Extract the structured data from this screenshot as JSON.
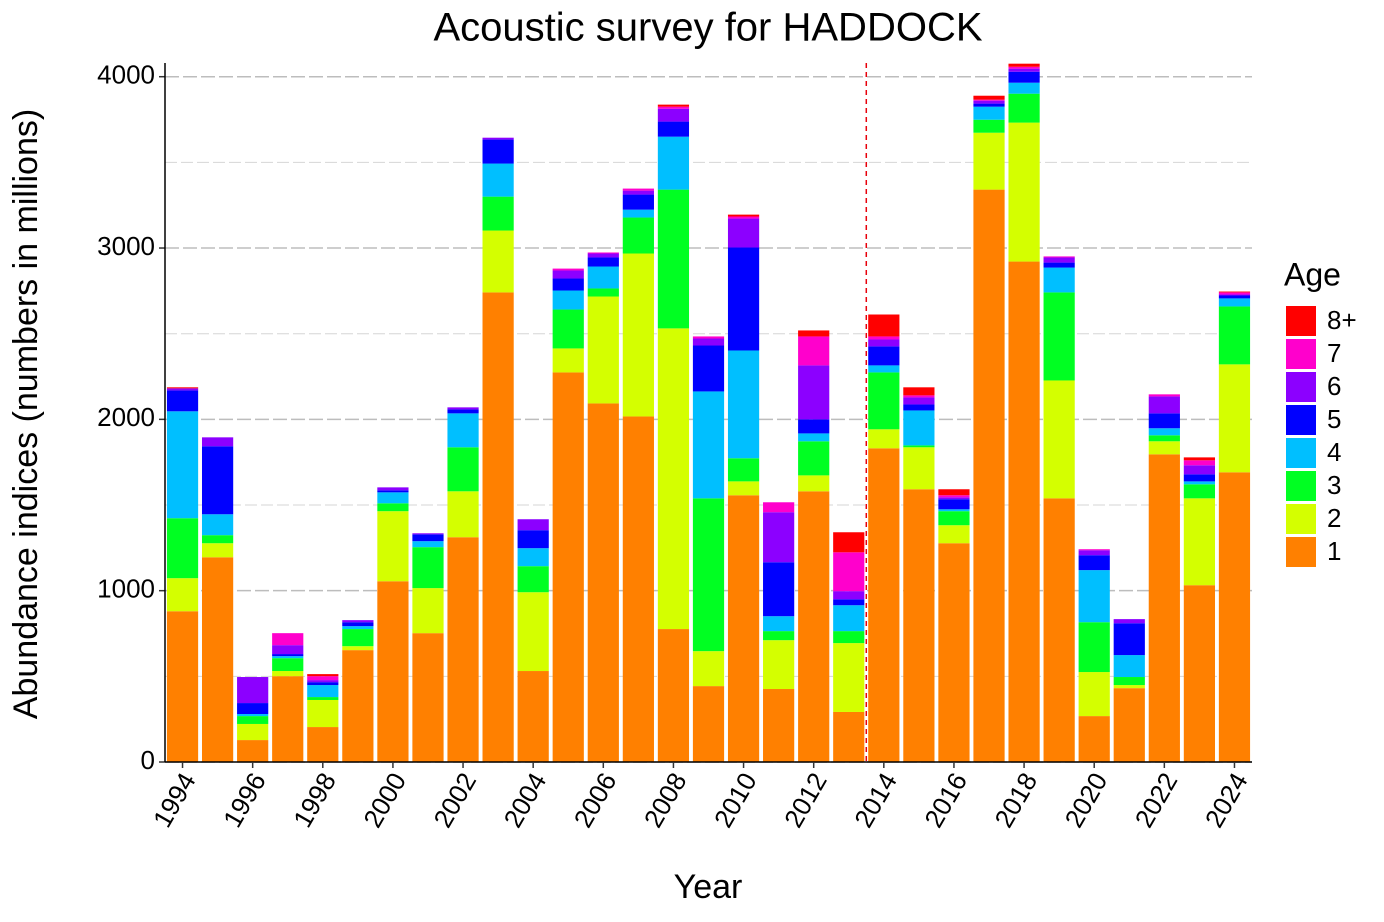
{
  "chart_data": {
    "type": "stacked-bar",
    "title": "Acoustic survey for HADDOCK",
    "x_label": "Year",
    "y_label": "Abundance indices (numbers in millions)",
    "legend_title": "Age",
    "legend_position": "right",
    "x": [
      1994,
      1995,
      1996,
      1997,
      1998,
      1999,
      2000,
      2001,
      2002,
      2003,
      2004,
      2005,
      2006,
      2007,
      2008,
      2009,
      2010,
      2011,
      2012,
      2013,
      2014,
      2015,
      2016,
      2017,
      2018,
      2019,
      2020,
      2021,
      2022,
      2023,
      2024
    ],
    "xlim": [
      1993.5,
      2024.5
    ],
    "xticks": [
      1994,
      1996,
      1998,
      2000,
      2002,
      2004,
      2006,
      2008,
      2010,
      2012,
      2014,
      2016,
      2018,
      2020,
      2022,
      2024
    ],
    "ylim": [
      0,
      4080
    ],
    "yticks": [
      0,
      1000,
      2000,
      3000,
      4000
    ],
    "yminor": [
      500,
      1500,
      2500,
      3500
    ],
    "grid": true,
    "vline": 2013.5,
    "vline_color": "#e8000b",
    "series": [
      {
        "name": "1",
        "color": "#ff8000",
        "values": [
          880,
          1195,
          128,
          501,
          204,
          653,
          1055,
          752,
          1312,
          2741,
          531,
          2274,
          2093,
          2017,
          776,
          443,
          1557,
          426,
          1580,
          292,
          1831,
          1592,
          1277,
          3341,
          2921,
          1539,
          268,
          431,
          1796,
          1032,
          1691
        ]
      },
      {
        "name": "2",
        "color": "#d4ff00",
        "values": [
          193,
          82,
          94,
          30,
          158,
          23,
          409,
          263,
          268,
          361,
          460,
          140,
          624,
          951,
          1755,
          204,
          81,
          285,
          93,
          402,
          111,
          245,
          105,
          332,
          811,
          688,
          257,
          18,
          76,
          507,
          630
        ]
      },
      {
        "name": "3",
        "color": "#00ff22",
        "values": [
          350,
          47,
          46,
          75,
          17,
          100,
          46,
          239,
          257,
          198,
          152,
          227,
          47,
          210,
          810,
          892,
          135,
          53,
          199,
          70,
          332,
          11,
          82,
          76,
          169,
          514,
          291,
          47,
          35,
          82,
          338
        ]
      },
      {
        "name": "4",
        "color": "#00bfff",
        "values": [
          624,
          122,
          12,
          12,
          70,
          17,
          64,
          35,
          198,
          193,
          105,
          111,
          128,
          46,
          309,
          624,
          629,
          87,
          46,
          151,
          41,
          204,
          11,
          76,
          64,
          145,
          304,
          128,
          41,
          17,
          47
        ]
      },
      {
        "name": "5",
        "color": "#0000ff",
        "values": [
          122,
          397,
          64,
          12,
          17,
          23,
          12,
          40,
          23,
          140,
          105,
          70,
          53,
          88,
          88,
          268,
          601,
          315,
          82,
          35,
          111,
          35,
          59,
          18,
          64,
          29,
          87,
          186,
          87,
          41,
          17
        ]
      },
      {
        "name": "6",
        "color": "#8c00ff",
        "values": [
          12,
          52,
          152,
          52,
          12,
          12,
          17,
          6,
          12,
          11,
          64,
          47,
          23,
          23,
          75,
          41,
          169,
          292,
          315,
          47,
          40,
          41,
          11,
          17,
          18,
          30,
          29,
          24,
          99,
          53,
          6
        ]
      },
      {
        "name": "7",
        "color": "#ff00cc",
        "values": [
          0,
          0,
          0,
          70,
          23,
          0,
          0,
          0,
          0,
          0,
          0,
          11,
          6,
          12,
          12,
          12,
          12,
          58,
          169,
          227,
          18,
          12,
          12,
          6,
          11,
          6,
          6,
          0,
          12,
          29,
          12
        ]
      },
      {
        "name": "8+",
        "color": "#ff0000",
        "values": [
          6,
          0,
          0,
          0,
          12,
          0,
          0,
          0,
          0,
          0,
          0,
          0,
          0,
          0,
          12,
          0,
          11,
          0,
          35,
          117,
          128,
          47,
          35,
          23,
          18,
          0,
          0,
          0,
          0,
          17,
          5
        ]
      }
    ]
  }
}
